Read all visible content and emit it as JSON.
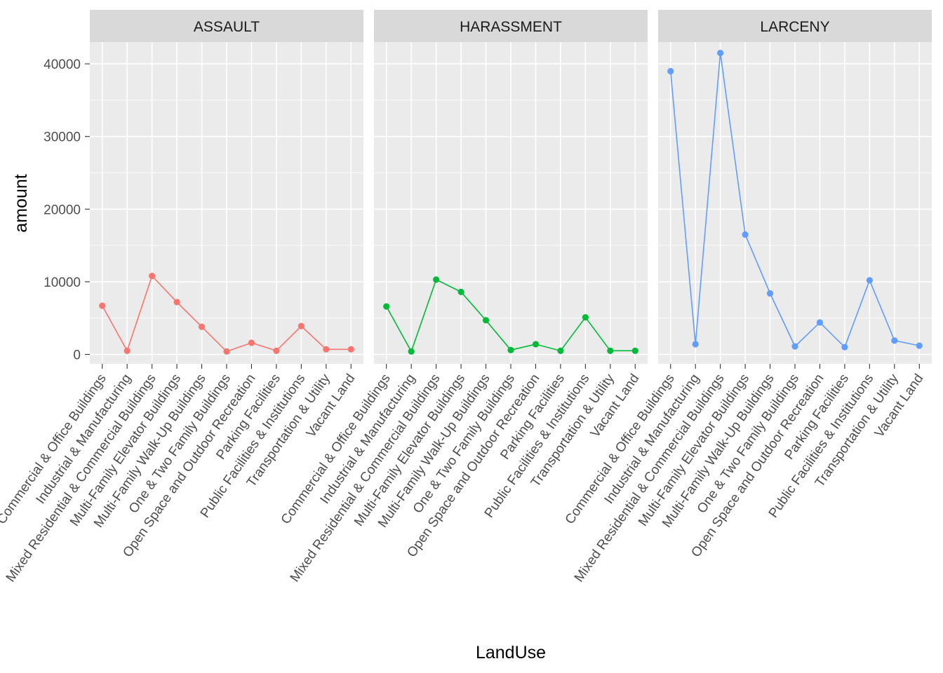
{
  "chart_data": {
    "type": "line",
    "xlabel": "LandUse",
    "ylabel": "amount",
    "ylim": [
      -1300,
      43000
    ],
    "yticks": [
      0,
      10000,
      20000,
      30000,
      40000
    ],
    "grid": true,
    "legend": "none",
    "categories": [
      "Commercial & Office Buildings",
      "Industrial & Manufacturing",
      "Mixed Residential & Commercial Buildings",
      "Multi-Family Elevator Buildings",
      "Multi-Family Walk-Up Buildings",
      "One & Two Family Buildings",
      "Open Space and Outdoor Recreation",
      "Parking Facilities",
      "Public Facilities & Institutions",
      "Transportation & Utility",
      "Vacant Land"
    ],
    "facets": [
      {
        "label": "ASSAULT",
        "color": "#F8766D",
        "values": [
          6700,
          500,
          10800,
          7200,
          3800,
          400,
          1600,
          500,
          3900,
          700,
          700
        ]
      },
      {
        "label": "HARASSMENT",
        "color": "#00BA38",
        "values": [
          6600,
          400,
          10300,
          8600,
          4700,
          600,
          1400,
          500,
          5100,
          500,
          500
        ]
      },
      {
        "label": "LARCENY",
        "color": "#619CFF",
        "values": [
          39000,
          1400,
          41500,
          16500,
          8400,
          1100,
          4400,
          1000,
          10200,
          1900,
          1200
        ]
      }
    ]
  }
}
